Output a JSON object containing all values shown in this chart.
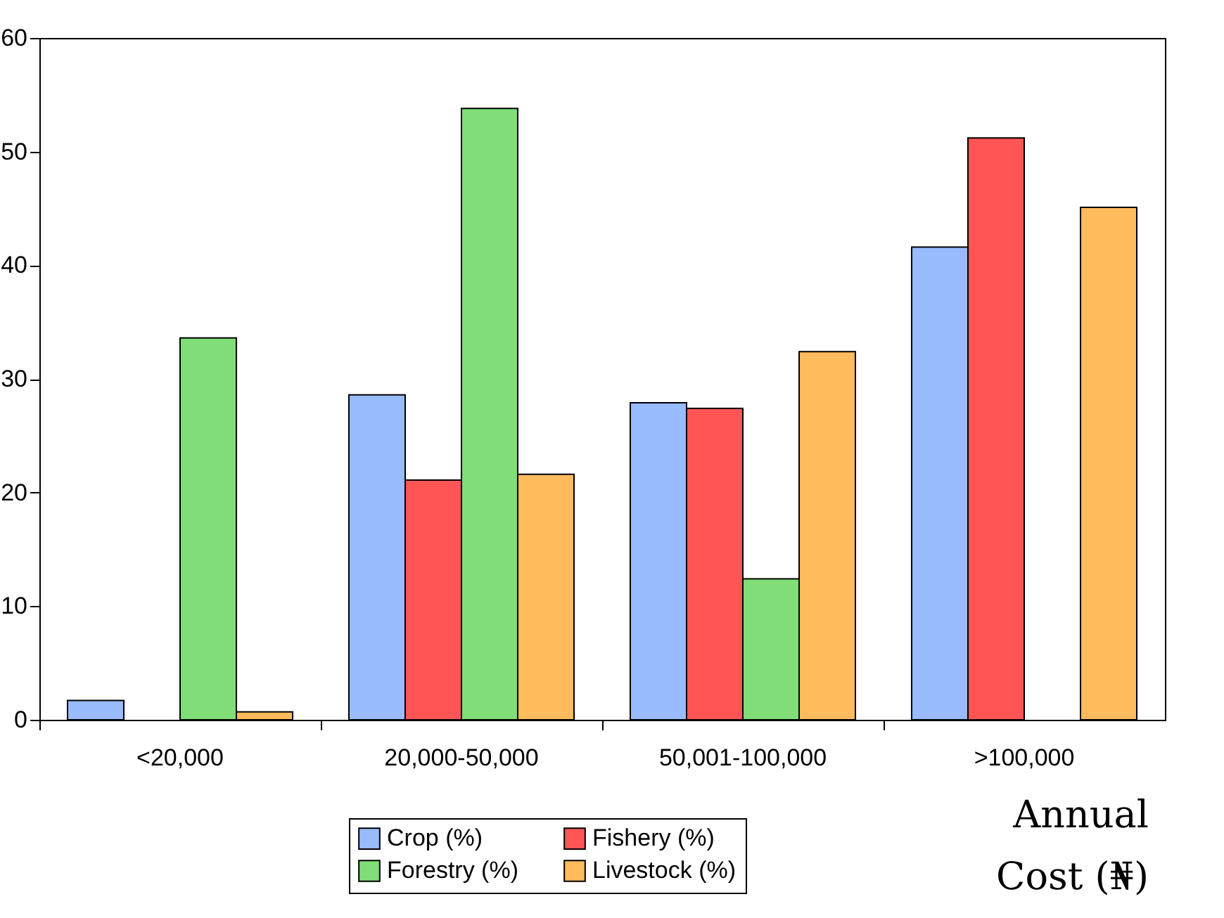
{
  "chart_data": {
    "type": "bar",
    "xlabel": "Annual Cost (₦)",
    "categories": [
      "<20,000",
      "20,000-50,000",
      "50,001-100,000",
      ">100,000"
    ],
    "series": [
      {
        "name": "Crop (%)",
        "color": "#99bbff",
        "values": [
          1.7,
          28.6,
          27.9,
          41.6
        ]
      },
      {
        "name": "Fishery (%)",
        "color": "#ff5555",
        "values": [
          null,
          21.1,
          27.4,
          51.2
        ]
      },
      {
        "name": "Forestry (%)",
        "color": "#80dd77",
        "values": [
          33.6,
          53.8,
          12.4,
          null
        ]
      },
      {
        "name": "Livestock (%)",
        "color": "#ffbb5c",
        "values": [
          0.7,
          21.6,
          32.4,
          45.1
        ]
      }
    ],
    "ylim": [
      0,
      60
    ],
    "yticks": [
      0,
      10,
      20,
      30,
      40,
      50,
      60
    ],
    "grid": false,
    "legend": "bottom"
  }
}
